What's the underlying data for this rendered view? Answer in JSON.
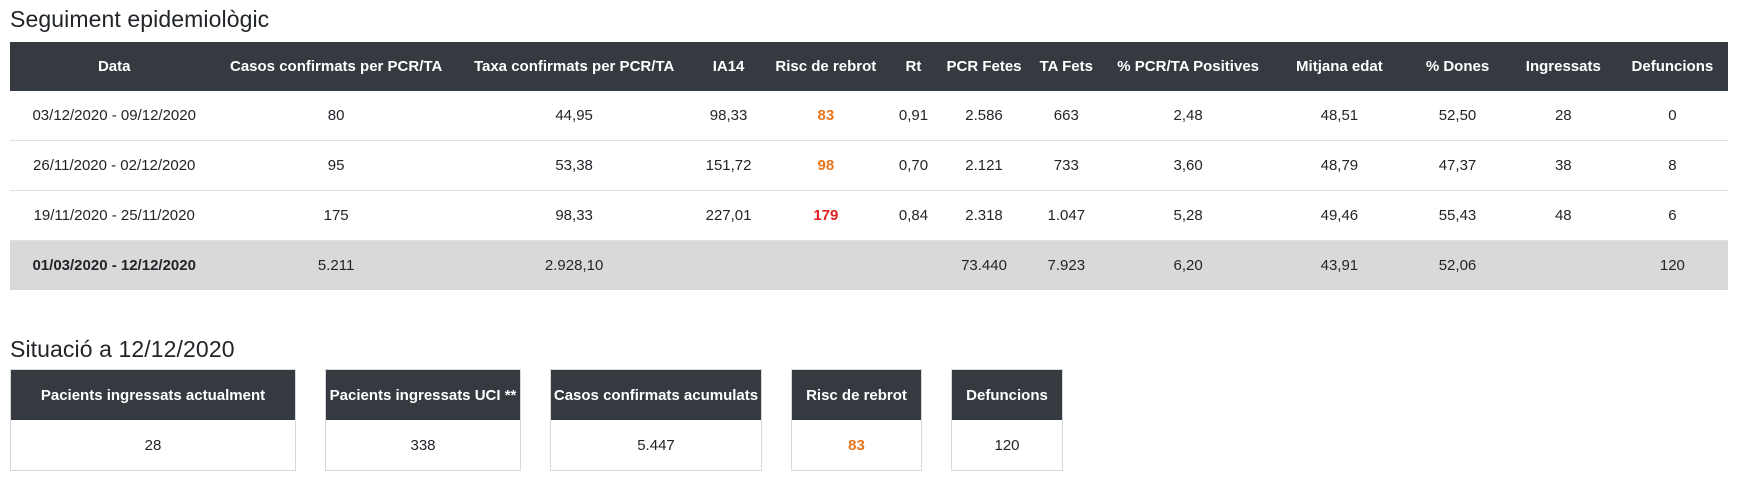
{
  "section1": {
    "title": "Seguiment epidemiològic",
    "columns": [
      "Data",
      "Casos confirmats per PCR/TA",
      "Taxa confirmats per PCR/TA",
      "IA14",
      "Risc de rebrot",
      "Rt",
      "PCR Fetes",
      "TA Fets",
      "% PCR/TA Positives",
      "Mitjana edat",
      "% Dones",
      "Ingressats",
      "Defuncions"
    ],
    "rows": [
      {
        "date": "03/12/2020 - 09/12/2020",
        "cases": "80",
        "rate": "44,95",
        "ia14": "98,33",
        "risk": "83",
        "risk_color": "#e8761c",
        "rt": "0,91",
        "pcr": "2.586",
        "ta": "663",
        "positive": "2,48",
        "age": "48,51",
        "women": "52,50",
        "admitted": "28",
        "deaths": "0"
      },
      {
        "date": "26/11/2020 - 02/12/2020",
        "cases": "95",
        "rate": "53,38",
        "ia14": "151,72",
        "risk": "98",
        "risk_color": "#e8761c",
        "rt": "0,70",
        "pcr": "2.121",
        "ta": "733",
        "positive": "3,60",
        "age": "48,79",
        "women": "47,37",
        "admitted": "38",
        "deaths": "8"
      },
      {
        "date": "19/11/2020 - 25/11/2020",
        "cases": "175",
        "rate": "98,33",
        "ia14": "227,01",
        "risk": "179",
        "risk_color": "#e02020",
        "rt": "0,84",
        "pcr": "2.318",
        "ta": "1.047",
        "positive": "5,28",
        "age": "49,46",
        "women": "55,43",
        "admitted": "48",
        "deaths": "6"
      }
    ],
    "total": {
      "date": "01/03/2020 - 12/12/2020",
      "cases": "5.211",
      "rate": "2.928,10",
      "ia14": "",
      "risk": "",
      "rt": "",
      "pcr": "73.440",
      "ta": "7.923",
      "positive": "6,20",
      "age": "43,91",
      "women": "52,06",
      "admitted": "",
      "deaths": "120"
    }
  },
  "section2": {
    "title": "Situació a 12/12/2020",
    "cards": [
      {
        "label": "Pacients ingressats actualment",
        "value": "28"
      },
      {
        "label": "Pacients ingressats UCI **",
        "value": "338"
      },
      {
        "label": "Casos confirmats acumulats",
        "value": "5.447"
      },
      {
        "label": "Risc de rebrot",
        "value": "83",
        "value_color": "#e8761c"
      },
      {
        "label": "Defuncions",
        "value": "120"
      }
    ]
  }
}
